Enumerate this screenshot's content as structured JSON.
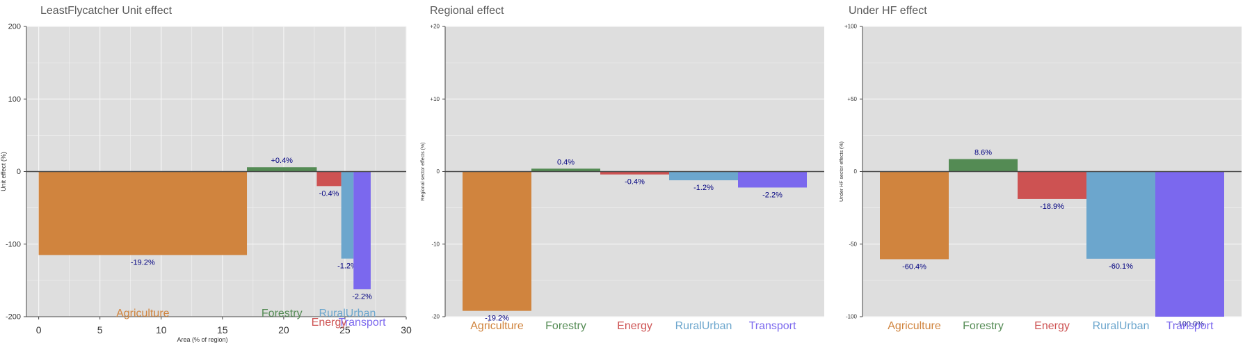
{
  "colors": {
    "Agriculture": "#D0843E",
    "Forestry": "#548B54",
    "Energy": "#CD5252",
    "RuralUrban": "#6CA6CD",
    "Transport": "#7B68EE",
    "panel_bg": "#DEDEDE",
    "grid": "#F5F5F5",
    "value_label": "#000080"
  },
  "chart_data": [
    {
      "type": "bar",
      "subtype": "variable-width",
      "title": "LeastFlycatcher Unit effect",
      "xlabel": "Area (% of region)",
      "ylabel": "Unit effect (%)",
      "xlim": [
        -1,
        30
      ],
      "ylim": [
        -200,
        200
      ],
      "xticks": [
        "0",
        "5",
        "10",
        "15",
        "20",
        "25",
        "30"
      ],
      "yticks": [
        "200",
        "100",
        "0",
        "-100",
        "-200"
      ],
      "grid": true,
      "bars": [
        {
          "sector": "Agriculture",
          "x0": 0,
          "x1": 17,
          "value": -115,
          "label": "-19.2%",
          "name_label": "Agriculture"
        },
        {
          "sector": "Forestry",
          "x0": 17,
          "x1": 22.7,
          "value": 6,
          "label": "+0.4%",
          "name_label": "Forestry"
        },
        {
          "sector": "Energy",
          "x0": 22.7,
          "x1": 24.7,
          "value": -20,
          "label": "-0.4%",
          "name_label": "Energy"
        },
        {
          "sector": "RuralUrban",
          "x0": 24.7,
          "x1": 25.7,
          "value": -120,
          "label": "-1.2%",
          "name_label": "RuralUrban"
        },
        {
          "sector": "Transport",
          "x0": 25.7,
          "x1": 27.1,
          "value": -162,
          "label": "-2.2%",
          "name_label": "Transport"
        }
      ]
    },
    {
      "type": "bar",
      "title": "Regional effect",
      "ylabel": "Regional sector effects (%)",
      "ylim": [
        -20,
        20
      ],
      "yticks": [
        "+20",
        "+10",
        "0",
        "-10",
        "-20"
      ],
      "grid": true,
      "categories": [
        "Agriculture",
        "Forestry",
        "Energy",
        "RuralUrban",
        "Transport"
      ],
      "values": [
        -19.2,
        0.4,
        -0.4,
        -1.2,
        -2.2
      ],
      "labels": [
        "-19.2%",
        "0.4%",
        "-0.4%",
        "-1.2%",
        "-2.2%"
      ]
    },
    {
      "type": "bar",
      "title": "Under HF effect",
      "ylabel": "Under HF sector effects (%)",
      "ylim": [
        -100,
        100
      ],
      "yticks": [
        "+100",
        "+50",
        "0",
        "-50",
        "-100"
      ],
      "grid": true,
      "categories": [
        "Agriculture",
        "Forestry",
        "Energy",
        "RuralUrban",
        "Transport"
      ],
      "values": [
        -60.4,
        8.6,
        -18.9,
        -60.1,
        -100.0
      ],
      "labels": [
        "-60.4%",
        "8.6%",
        "-18.9%",
        "-60.1%",
        "-100.0%"
      ]
    }
  ]
}
